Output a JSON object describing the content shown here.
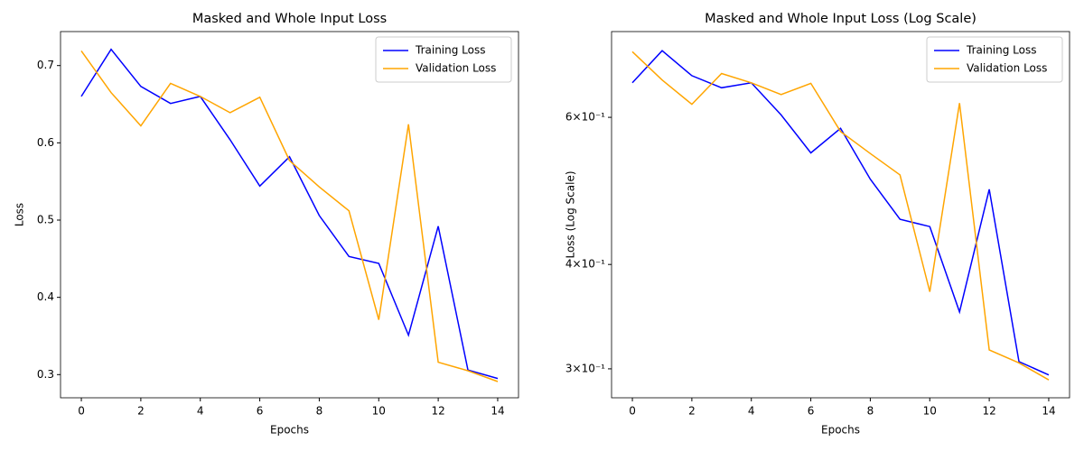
{
  "chart_data": [
    {
      "type": "line",
      "title": "Masked and Whole Input Loss",
      "x_label": "Epochs",
      "y_label": "Loss",
      "x": [
        0,
        1,
        2,
        3,
        4,
        5,
        6,
        7,
        8,
        9,
        10,
        11,
        12,
        13,
        14
      ],
      "series": [
        {
          "name": "Training Loss",
          "color": "#0000ff",
          "values": [
            0.66,
            0.721,
            0.673,
            0.651,
            0.66,
            0.604,
            0.544,
            0.582,
            0.506,
            0.453,
            0.444,
            0.351,
            0.492,
            0.306,
            0.295
          ]
        },
        {
          "name": "Validation Loss",
          "color": "#ffa500",
          "values": [
            0.719,
            0.665,
            0.622,
            0.677,
            0.66,
            0.639,
            0.659,
            0.577,
            0.543,
            0.512,
            0.371,
            0.624,
            0.316,
            0.305,
            0.291
          ]
        }
      ],
      "xlim": [
        -0.7,
        14.7
      ],
      "xticks": [
        0,
        2,
        4,
        6,
        8,
        10,
        12,
        14
      ],
      "ylim": [
        0.27,
        0.744
      ],
      "yticks": [
        0.3,
        0.4,
        0.5,
        0.6,
        0.7
      ],
      "log_y": false,
      "legend": "upper right"
    },
    {
      "type": "line",
      "title": "Masked and Whole Input Loss (Log Scale)",
      "x_label": "Epochs",
      "y_label": "Loss (Log Scale)",
      "x": [
        0,
        1,
        2,
        3,
        4,
        5,
        6,
        7,
        8,
        9,
        10,
        11,
        12,
        13,
        14
      ],
      "series": [
        {
          "name": "Training Loss",
          "color": "#0000ff",
          "values": [
            0.66,
            0.721,
            0.673,
            0.651,
            0.66,
            0.604,
            0.544,
            0.582,
            0.506,
            0.453,
            0.444,
            0.351,
            0.492,
            0.306,
            0.295
          ]
        },
        {
          "name": "Validation Loss",
          "color": "#ffa500",
          "values": [
            0.719,
            0.665,
            0.622,
            0.677,
            0.66,
            0.639,
            0.659,
            0.577,
            0.543,
            0.512,
            0.371,
            0.624,
            0.316,
            0.305,
            0.291
          ]
        }
      ],
      "xlim": [
        -0.7,
        14.7
      ],
      "xticks": [
        0,
        2,
        4,
        6,
        8,
        10,
        12,
        14
      ],
      "ylim": [
        0.277,
        0.76
      ],
      "yticks": [
        {
          "value": 0.3,
          "label": "3×10⁻¹"
        },
        {
          "value": 0.4,
          "label": "4×10⁻¹"
        },
        {
          "value": 0.6,
          "label": "6×10⁻¹"
        }
      ],
      "log_y": true,
      "legend": "upper right"
    }
  ]
}
